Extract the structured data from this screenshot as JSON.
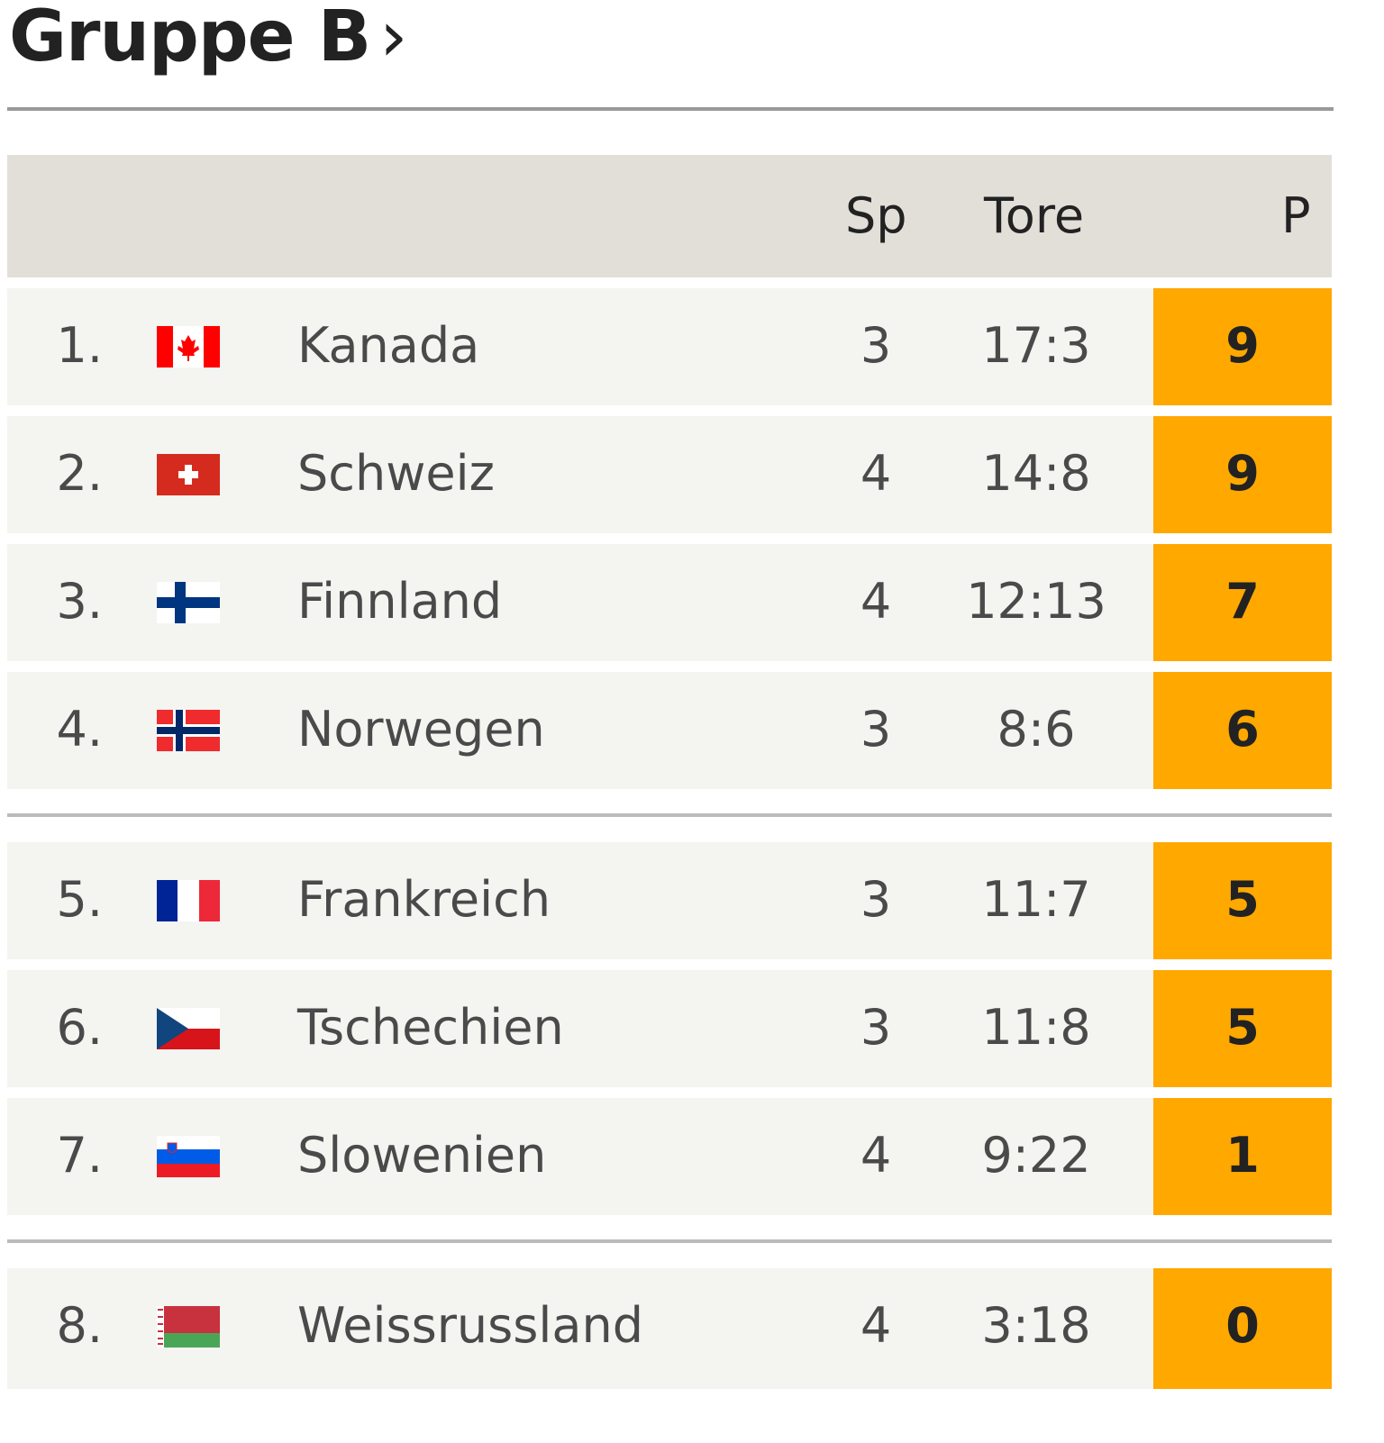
{
  "title": "Gruppe B",
  "title_chevron": "›",
  "columns": {
    "sp": "Sp",
    "tore": "Tore",
    "p": "P"
  },
  "colors": {
    "points_bg": "#ffa800",
    "header_bg": "#e2dfd8",
    "row_bg": "#f4f4f1"
  },
  "rows": [
    {
      "rank": "1.",
      "flag": "canada-flag",
      "team": "Kanada",
      "sp": "3",
      "tore": "17:3",
      "p": "9"
    },
    {
      "rank": "2.",
      "flag": "switzerland-flag",
      "team": "Schweiz",
      "sp": "4",
      "tore": "14:8",
      "p": "9"
    },
    {
      "rank": "3.",
      "flag": "finland-flag",
      "team": "Finnland",
      "sp": "4",
      "tore": "12:13",
      "p": "7"
    },
    {
      "rank": "4.",
      "flag": "norway-flag",
      "team": "Norwegen",
      "sp": "3",
      "tore": "8:6",
      "p": "6"
    },
    {
      "rank": "5.",
      "flag": "france-flag",
      "team": "Frankreich",
      "sp": "3",
      "tore": "11:7",
      "p": "5"
    },
    {
      "rank": "6.",
      "flag": "czechia-flag",
      "team": "Tschechien",
      "sp": "3",
      "tore": "11:8",
      "p": "5"
    },
    {
      "rank": "7.",
      "flag": "slovenia-flag",
      "team": "Slowenien",
      "sp": "4",
      "tore": "9:22",
      "p": "1"
    },
    {
      "rank": "8.",
      "flag": "belarus-flag",
      "team": "Weissrussland",
      "sp": "4",
      "tore": "3:18",
      "p": "0"
    }
  ]
}
